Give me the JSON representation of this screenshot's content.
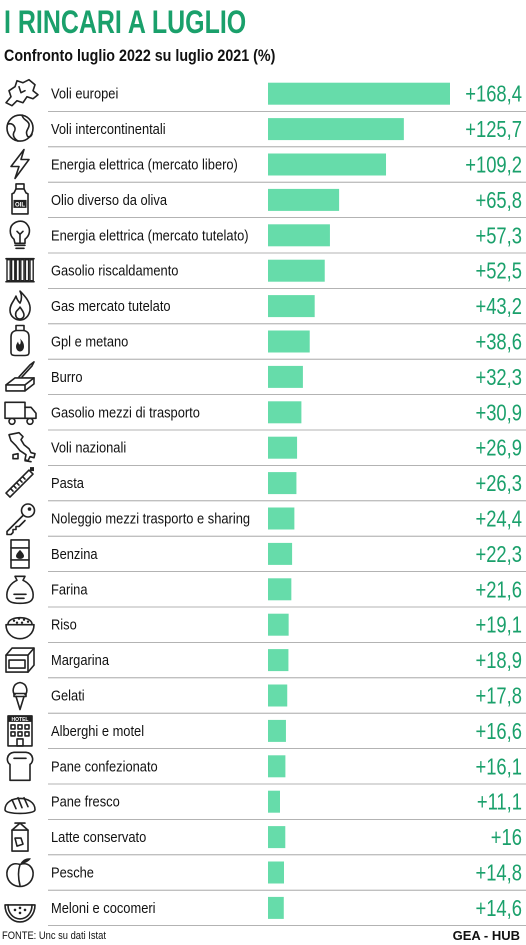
{
  "header": {
    "title": "I RINCARI A LUGLIO",
    "subtitle": "Confronto luglio 2022 su luglio 2021 (%)"
  },
  "footer": {
    "source": "FONTE: Unc su dati Istat",
    "credit": "GEA - HUB"
  },
  "colors": {
    "accent": "#1aa06b",
    "bar": "#66dcaa",
    "separator": "#9a9a9a",
    "icon": "#222222"
  },
  "chart_data": {
    "type": "bar",
    "orientation": "horizontal",
    "title": "I RINCARI A LUGLIO",
    "subtitle": "Confronto luglio 2022 su luglio 2021 (%)",
    "xlim": [
      0,
      168.4
    ],
    "categories": [
      "Voli europei",
      "Voli intercontinentali",
      "Energia elettrica (mercato libero)",
      "Olio diverso da oliva",
      "Energia elettrica (mercato tutelato)",
      "Gasolio riscaldamento",
      "Gas mercato tutelato",
      "Gpl e metano",
      "Burro",
      "Gasolio mezzi di trasporto",
      "Voli nazionali",
      "Pasta",
      "Noleggio mezzi trasporto e sharing",
      "Benzina",
      "Farina",
      "Riso",
      "Margarina",
      "Gelati",
      "Alberghi e motel",
      "Pane confezionato",
      "Pane fresco",
      "Latte conservato",
      "Pesche",
      "Meloni e cocomeri"
    ],
    "values": [
      168.4,
      125.7,
      109.2,
      65.8,
      57.3,
      52.5,
      43.2,
      38.6,
      32.3,
      30.9,
      26.9,
      26.3,
      24.4,
      22.3,
      21.6,
      19.1,
      18.9,
      17.8,
      16.6,
      16.1,
      11.1,
      16,
      14.8,
      14.6
    ],
    "value_labels": [
      "+168,4",
      "+125,7",
      "+109,2",
      "+65,8",
      "+57,3",
      "+52,5",
      "+43,2",
      "+38,6",
      "+32,3",
      "+30,9",
      "+26,9",
      "+26,3",
      "+24,4",
      "+22,3",
      "+21,6",
      "+19,1",
      "+18,9",
      "+17,8",
      "+16,6",
      "+16,1",
      "+11,1",
      "+16",
      "+14,8",
      "+14,6"
    ],
    "icons": [
      "europe-map-icon",
      "globe-icon",
      "lightning-icon",
      "oil-bottle-icon",
      "light-bulb-icon",
      "radiator-icon",
      "flame-icon",
      "gas-cylinder-icon",
      "butter-icon",
      "truck-icon",
      "italy-map-icon",
      "pasta-icon",
      "key-icon",
      "fuel-barrel-icon",
      "flour-sack-icon",
      "rice-bowl-icon",
      "margarine-icon",
      "ice-cream-icon",
      "hotel-icon",
      "bread-slice-icon",
      "bread-loaf-icon",
      "milk-carton-icon",
      "peach-icon",
      "watermelon-icon"
    ],
    "grid": false,
    "legend": "none"
  }
}
